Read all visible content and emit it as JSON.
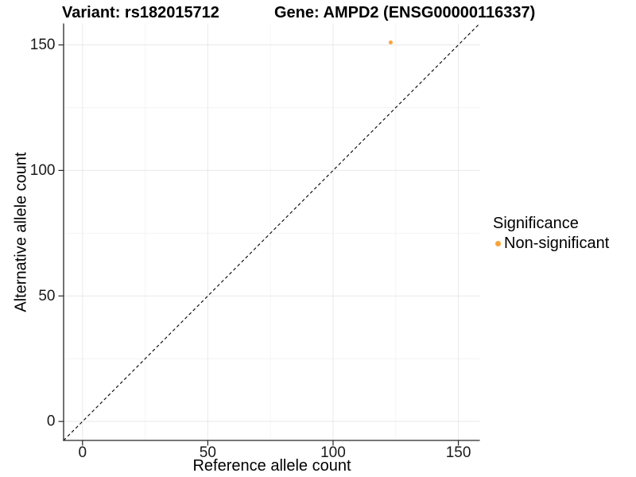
{
  "titles": {
    "variant": "Variant: rs182015712",
    "gene": "Gene: AMPD2 (ENSG00000116337)"
  },
  "chart_data": {
    "type": "scatter",
    "xlabel": "Reference allele count",
    "ylabel": "Alternative allele count",
    "x_ticks": [
      0,
      50,
      100,
      150
    ],
    "y_ticks": [
      0,
      50,
      100,
      150
    ],
    "x_minor_ticks": [
      25,
      75,
      125
    ],
    "y_minor_ticks": [
      25,
      75,
      125
    ],
    "xlim": [
      -7.55,
      158.55
    ],
    "ylim": [
      -7.55,
      158.55
    ],
    "grid": true,
    "points": [
      {
        "x": 123,
        "y": 151,
        "significance": "Non-significant"
      }
    ],
    "identity_line": {
      "style": "dashed",
      "from": -7.55,
      "to": 158.55
    },
    "legend": {
      "title": "Significance",
      "position": "right",
      "entries": [
        {
          "label": "Non-significant",
          "color": "#F9A43A"
        }
      ]
    },
    "colors": {
      "point": "#F9A43A",
      "axis": "#262626",
      "major_grid": "#e9e9e9",
      "minor_grid": "#f4f4f4",
      "identity_line": "#000000"
    }
  }
}
